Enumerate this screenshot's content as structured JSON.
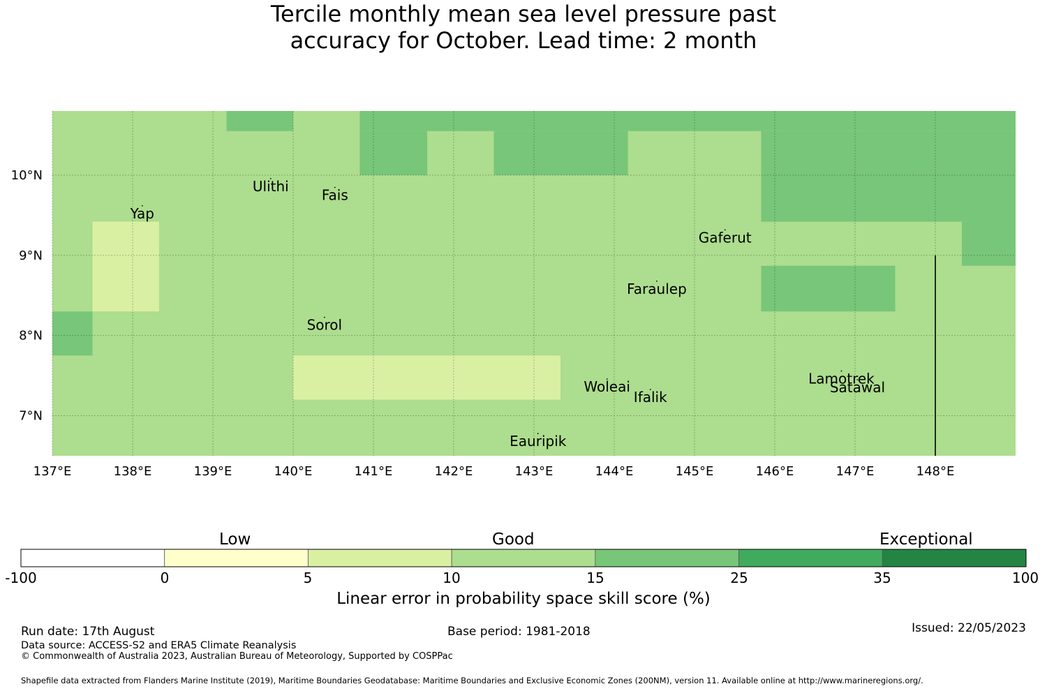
{
  "title": {
    "line1": "Tercile monthly mean sea level pressure past",
    "line2": "accuracy for October. Lead time: 2 month"
  },
  "map": {
    "lon_range": [
      137,
      149
    ],
    "lat_range": [
      6.5,
      10.8
    ],
    "lon_ticks": [
      137,
      138,
      139,
      140,
      141,
      142,
      143,
      144,
      145,
      146,
      147,
      148
    ],
    "lon_tick_labels": [
      "137°E",
      "138°E",
      "139°E",
      "140°E",
      "141°E",
      "142°E",
      "143°E",
      "144°E",
      "145°E",
      "146°E",
      "147°E",
      "148°E"
    ],
    "lat_ticks": [
      7,
      8,
      9,
      10
    ],
    "lat_tick_labels": [
      "7°N",
      "8°N",
      "9°N",
      "10°N"
    ],
    "gridlines": true,
    "background_class": 3,
    "cells": [
      {
        "lon": [
          137,
          137.5
        ],
        "lat": [
          7.75,
          8.3
        ],
        "class": 4
      },
      {
        "lon": [
          137.5,
          138.33
        ],
        "lat": [
          8.3,
          9.42
        ],
        "class": 2
      },
      {
        "lon": [
          140,
          143.33
        ],
        "lat": [
          7.2,
          7.75
        ],
        "class": 2
      },
      {
        "lon": [
          139.17,
          140
        ],
        "lat": [
          10.55,
          10.8
        ],
        "class": 4
      },
      {
        "lon": [
          140.83,
          149
        ],
        "lat": [
          10.55,
          10.8
        ],
        "class": 4
      },
      {
        "lon": [
          140.83,
          141.67
        ],
        "lat": [
          10.0,
          10.55
        ],
        "class": 4
      },
      {
        "lon": [
          142.5,
          144.17
        ],
        "lat": [
          10.0,
          10.55
        ],
        "class": 4
      },
      {
        "lon": [
          145.83,
          149
        ],
        "lat": [
          9.42,
          10.55
        ],
        "class": 4
      },
      {
        "lon": [
          148.33,
          149
        ],
        "lat": [
          8.87,
          9.42
        ],
        "class": 4
      },
      {
        "lon": [
          145.83,
          147.5
        ],
        "lat": [
          8.3,
          8.87
        ],
        "class": 4
      }
    ],
    "boundary_line": {
      "lon": 148,
      "lat": [
        6.5,
        9.0
      ]
    },
    "places": [
      {
        "name": "Ulithi",
        "lon": 139.72,
        "lat": 9.87
      },
      {
        "name": "Fais",
        "lon": 140.52,
        "lat": 9.76
      },
      {
        "name": "Yap",
        "lon": 138.12,
        "lat": 9.53
      },
      {
        "name": "Gaferut",
        "lon": 145.38,
        "lat": 9.23
      },
      {
        "name": "Faraulep",
        "lon": 144.53,
        "lat": 8.59
      },
      {
        "name": "Sorol",
        "lon": 140.39,
        "lat": 8.14
      },
      {
        "name": "Woleai",
        "lon": 143.91,
        "lat": 7.37
      },
      {
        "name": "Ifalik",
        "lon": 144.45,
        "lat": 7.24
      },
      {
        "name": "Lamotrek",
        "lon": 146.83,
        "lat": 7.47
      },
      {
        "name": "Satawal",
        "lon": 147.03,
        "lat": 7.36
      },
      {
        "name": "Eauripik",
        "lon": 143.05,
        "lat": 6.69
      }
    ]
  },
  "colorbar": {
    "categories": [
      "Low",
      "Good",
      "Exceptional"
    ],
    "tick_labels": [
      "-100",
      "0",
      "5",
      "10",
      "15",
      "25",
      "35",
      "100"
    ],
    "colors": [
      "#ffffff",
      "#ffffcc",
      "#d9f0a3",
      "#addd8e",
      "#78c679",
      "#41ab5d",
      "#238443"
    ],
    "label": "Linear error in probability space skill score (%)"
  },
  "footer": {
    "run_date": "Run date: 17th August",
    "data_source": "Data source: ACCESS-S2 and ERA5 Climate Reanalysis",
    "copyright": "© Commonwealth of Australia 2023, Australian Bureau of Meteorology, Supported by COSPPac",
    "base_period": "Base period: 1981-2018",
    "issued": "Issued: 22/05/2023",
    "shapefile": "Shapefile data extracted from Flanders Marine Institute (2019), Maritime Boundaries Geodatabase: Maritime Boundaries and Exclusive Economic Zones (200NM), version 11. Available online at http://www.marineregions.org/."
  }
}
